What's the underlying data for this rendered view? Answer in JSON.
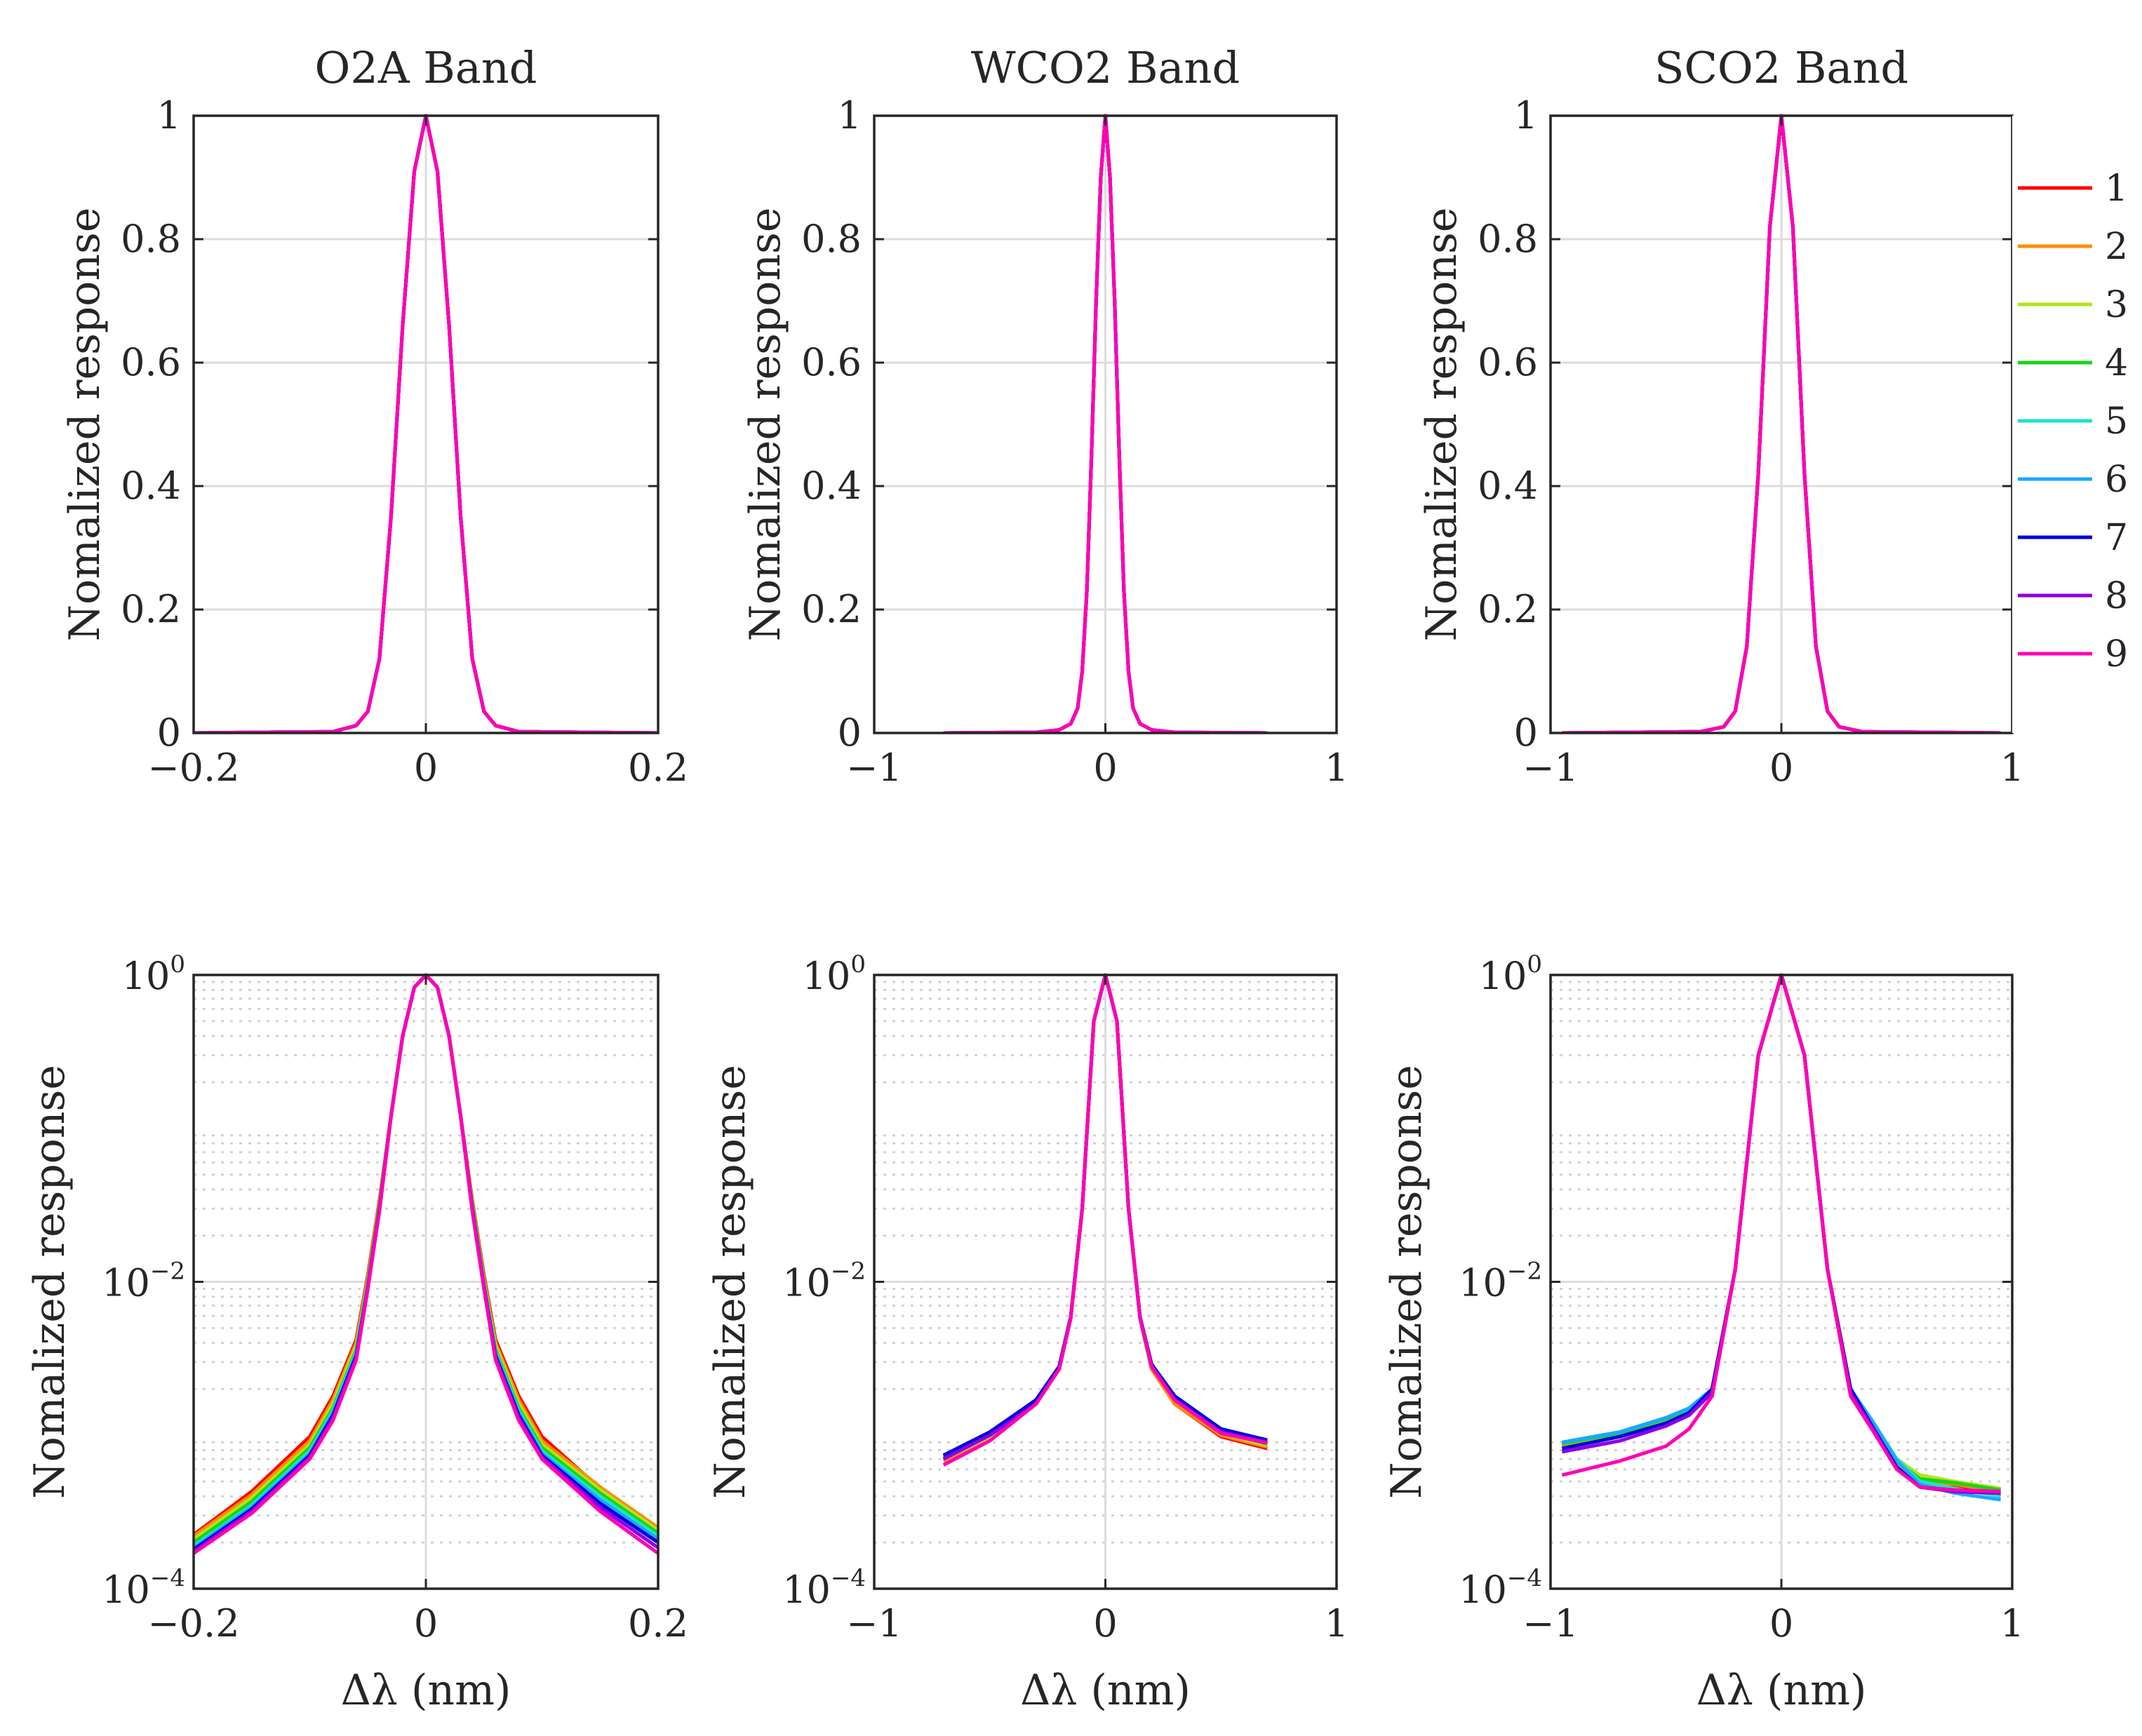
{
  "figure": {
    "ylabel": "Nomalized response",
    "xlabel": "Δλ (nm)",
    "log_tick_base": "10",
    "legend": {
      "placement": "right of top-right panel",
      "entries": [
        "1",
        "2",
        "3",
        "4",
        "5",
        "6",
        "7",
        "8",
        "9"
      ],
      "colors": [
        "#ff0000",
        "#ff8c00",
        "#b2e51a",
        "#1ad31a",
        "#1ae5c8",
        "#1aa8ff",
        "#0000e0",
        "#8c00e5",
        "#ff00b4"
      ]
    }
  },
  "chart_data": [
    {
      "type": "line",
      "panel": "o2a-linear",
      "title": "O2A Band",
      "yscale": "linear",
      "xlim": [
        -0.2,
        0.2
      ],
      "ylim": [
        0,
        1
      ],
      "xticks": [
        -0.2,
        0,
        0.2
      ],
      "xtick_labels": [
        "−0.2",
        "0",
        "0.2"
      ],
      "yticks": [
        0,
        0.2,
        0.4,
        0.6,
        0.8,
        1
      ],
      "ytick_labels": [
        "0",
        "0.2",
        "0.4",
        "0.6",
        "0.8",
        "1"
      ],
      "xlabel": "",
      "ylabel": "Nomalized response",
      "grid": true,
      "series_names": [
        "1",
        "2",
        "3",
        "4",
        "5",
        "6",
        "7",
        "8",
        "9"
      ],
      "x": [
        -0.2,
        -0.08,
        -0.06,
        -0.05,
        -0.04,
        -0.03,
        -0.02,
        -0.01,
        0,
        0.01,
        0.02,
        0.03,
        0.04,
        0.05,
        0.06,
        0.08,
        0.2
      ],
      "y": [
        0,
        0.002,
        0.012,
        0.035,
        0.12,
        0.35,
        0.66,
        0.91,
        1,
        0.91,
        0.66,
        0.35,
        0.12,
        0.035,
        0.012,
        0.002,
        0
      ]
    },
    {
      "type": "line",
      "panel": "wco2-linear",
      "title": "WCO2 Band",
      "yscale": "linear",
      "xlim": [
        -1,
        1
      ],
      "ylim": [
        0,
        1
      ],
      "xticks": [
        -1,
        0,
        1
      ],
      "xtick_labels": [
        "−1",
        "0",
        "1"
      ],
      "yticks": [
        0,
        0.2,
        0.4,
        0.6,
        0.8,
        1
      ],
      "ytick_labels": [
        "0",
        "0.2",
        "0.4",
        "0.6",
        "0.8",
        "1"
      ],
      "xlabel": "",
      "ylabel": "Nomalized response",
      "grid": true,
      "series_names": [
        "1",
        "2",
        "3",
        "4",
        "5",
        "6",
        "7",
        "8",
        "9"
      ],
      "x": [
        -0.7,
        -0.3,
        -0.2,
        -0.15,
        -0.12,
        -0.1,
        -0.08,
        -0.06,
        -0.04,
        -0.02,
        0,
        0.02,
        0.04,
        0.06,
        0.08,
        0.1,
        0.12,
        0.15,
        0.2,
        0.3,
        0.7
      ],
      "y": [
        0,
        0.001,
        0.005,
        0.015,
        0.04,
        0.1,
        0.23,
        0.45,
        0.7,
        0.9,
        1,
        0.9,
        0.7,
        0.45,
        0.23,
        0.1,
        0.04,
        0.015,
        0.005,
        0.001,
        0
      ]
    },
    {
      "type": "line",
      "panel": "sco2-linear",
      "title": "SCO2 Band",
      "yscale": "linear",
      "xlim": [
        -1,
        1
      ],
      "ylim": [
        0,
        1
      ],
      "xticks": [
        -1,
        0,
        1
      ],
      "xtick_labels": [
        "−1",
        "0",
        "1"
      ],
      "yticks": [
        0,
        0.2,
        0.4,
        0.6,
        0.8,
        1
      ],
      "ytick_labels": [
        "0",
        "0.2",
        "0.4",
        "0.6",
        "0.8",
        "1"
      ],
      "xlabel": "",
      "ylabel": "Nomalized response",
      "grid": true,
      "series_names": [
        "1",
        "2",
        "3",
        "4",
        "5",
        "6",
        "7",
        "8",
        "9"
      ],
      "x": [
        -0.95,
        -0.35,
        -0.25,
        -0.2,
        -0.15,
        -0.1,
        -0.05,
        0,
        0.05,
        0.1,
        0.15,
        0.2,
        0.25,
        0.35,
        0.95
      ],
      "y": [
        0,
        0.002,
        0.01,
        0.035,
        0.14,
        0.42,
        0.82,
        1,
        0.82,
        0.42,
        0.14,
        0.035,
        0.01,
        0.002,
        0
      ]
    },
    {
      "type": "line",
      "panel": "o2a-log",
      "title": "",
      "yscale": "log",
      "xlim": [
        -0.2,
        0.2
      ],
      "ylim": [
        0.0001,
        1
      ],
      "xticks": [
        -0.2,
        0,
        0.2
      ],
      "xtick_labels": [
        "−0.2",
        "0",
        "0.2"
      ],
      "yticks": [
        0.0001,
        0.01,
        1
      ],
      "ytick_exponents": [
        "−4",
        "−2",
        "0"
      ],
      "xlabel": "Δλ (nm)",
      "ylabel": "Nomalized response",
      "grid": true,
      "minor_grid": true,
      "x": [
        -0.2,
        -0.15,
        -0.1,
        -0.08,
        -0.06,
        -0.05,
        -0.04,
        -0.03,
        -0.02,
        -0.01,
        0,
        0.01,
        0.02,
        0.03,
        0.04,
        0.05,
        0.06,
        0.08,
        0.1,
        0.15,
        0.2
      ],
      "series": [
        {
          "name": "1",
          "values": [
            0.000225,
            0.00043,
            0.00098,
            0.0018,
            0.0042,
            0.011,
            0.034,
            0.12,
            0.4,
            0.83,
            1,
            0.83,
            0.4,
            0.12,
            0.034,
            0.011,
            0.0042,
            0.0018,
            0.00098,
            0.00045,
            0.000245
          ]
        },
        {
          "name": "2",
          "values": [
            0.00022,
            0.00041,
            0.00092,
            0.0017,
            0.004,
            0.0105,
            0.033,
            0.12,
            0.4,
            0.83,
            1,
            0.83,
            0.4,
            0.12,
            0.033,
            0.0105,
            0.004,
            0.0017,
            0.00092,
            0.00046,
            0.00025
          ]
        },
        {
          "name": "3",
          "values": [
            0.00021,
            0.00039,
            0.00087,
            0.0016,
            0.0038,
            0.01,
            0.032,
            0.12,
            0.4,
            0.83,
            1,
            0.83,
            0.4,
            0.12,
            0.032,
            0.01,
            0.0038,
            0.0016,
            0.00087,
            0.00044,
            0.00024
          ]
        },
        {
          "name": "4",
          "values": [
            0.0002,
            0.00037,
            0.00083,
            0.0015,
            0.0036,
            0.0098,
            0.031,
            0.12,
            0.4,
            0.83,
            1,
            0.83,
            0.4,
            0.12,
            0.031,
            0.0098,
            0.0036,
            0.0015,
            0.00083,
            0.00042,
            0.00023
          ]
        },
        {
          "name": "5",
          "values": [
            0.00019,
            0.00035,
            0.00079,
            0.00145,
            0.0035,
            0.0096,
            0.03,
            0.12,
            0.4,
            0.83,
            1,
            0.83,
            0.4,
            0.12,
            0.03,
            0.0096,
            0.0035,
            0.00145,
            0.00079,
            0.0004,
            0.00022
          ]
        },
        {
          "name": "6",
          "values": [
            0.000185,
            0.00034,
            0.00076,
            0.0014,
            0.0034,
            0.0094,
            0.03,
            0.12,
            0.4,
            0.83,
            1,
            0.83,
            0.4,
            0.12,
            0.03,
            0.0094,
            0.0034,
            0.0014,
            0.00076,
            0.00038,
            0.00021
          ]
        },
        {
          "name": "7",
          "values": [
            0.00018,
            0.00033,
            0.00074,
            0.00135,
            0.0033,
            0.0093,
            0.03,
            0.12,
            0.4,
            0.83,
            1,
            0.83,
            0.4,
            0.12,
            0.03,
            0.0093,
            0.0033,
            0.00135,
            0.00074,
            0.00036,
            0.0002
          ]
        },
        {
          "name": "8",
          "values": [
            0.000175,
            0.00032,
            0.00072,
            0.0013,
            0.0032,
            0.0092,
            0.029,
            0.12,
            0.4,
            0.83,
            1,
            0.83,
            0.4,
            0.12,
            0.029,
            0.0092,
            0.0032,
            0.0013,
            0.00072,
            0.00034,
            0.000185
          ]
        },
        {
          "name": "9",
          "values": [
            0.00017,
            0.00031,
            0.0007,
            0.00125,
            0.0031,
            0.009,
            0.029,
            0.12,
            0.4,
            0.83,
            1,
            0.83,
            0.4,
            0.12,
            0.029,
            0.009,
            0.0031,
            0.00125,
            0.0007,
            0.00032,
            0.00017
          ]
        }
      ]
    },
    {
      "type": "line",
      "panel": "wco2-log",
      "title": "",
      "yscale": "log",
      "xlim": [
        -1,
        1
      ],
      "ylim": [
        0.0001,
        1
      ],
      "xticks": [
        -1,
        0,
        1
      ],
      "xtick_labels": [
        "−1",
        "0",
        "1"
      ],
      "yticks": [
        0.0001,
        0.01,
        1
      ],
      "ytick_exponents": [
        "−4",
        "−2",
        "0"
      ],
      "xlabel": "Δλ (nm)",
      "ylabel": "Nomalized response",
      "grid": true,
      "minor_grid": true,
      "x": [
        -0.7,
        -0.5,
        -0.3,
        -0.2,
        -0.15,
        -0.1,
        -0.05,
        0,
        0.05,
        0.1,
        0.15,
        0.2,
        0.3,
        0.5,
        0.7
      ],
      "series": [
        {
          "name": "1",
          "values": [
            0.00068,
            0.00095,
            0.0016,
            0.0027,
            0.0058,
            0.03,
            0.5,
            1,
            0.5,
            0.03,
            0.0058,
            0.0027,
            0.0016,
            0.00098,
            0.00082
          ]
        },
        {
          "name": "2",
          "values": [
            0.00068,
            0.00096,
            0.0016,
            0.0027,
            0.0058,
            0.03,
            0.5,
            1,
            0.5,
            0.03,
            0.0058,
            0.0027,
            0.0016,
            0.001,
            0.00084
          ]
        },
        {
          "name": "3",
          "values": [
            0.0007,
            0.00098,
            0.0017,
            0.0027,
            0.0058,
            0.03,
            0.5,
            1,
            0.5,
            0.03,
            0.0058,
            0.0028,
            0.0017,
            0.00103,
            0.00086
          ]
        },
        {
          "name": "4",
          "values": [
            0.0007,
            0.001,
            0.0017,
            0.0028,
            0.0058,
            0.03,
            0.5,
            1,
            0.5,
            0.03,
            0.0058,
            0.0028,
            0.0017,
            0.00105,
            0.00088
          ]
        },
        {
          "name": "5",
          "values": [
            0.00072,
            0.00102,
            0.0017,
            0.0028,
            0.0059,
            0.03,
            0.5,
            1,
            0.5,
            0.03,
            0.0059,
            0.0029,
            0.0018,
            0.00108,
            0.0009
          ]
        },
        {
          "name": "6",
          "values": [
            0.00072,
            0.00103,
            0.0017,
            0.0028,
            0.0059,
            0.03,
            0.5,
            1,
            0.5,
            0.03,
            0.0059,
            0.0029,
            0.0018,
            0.0011,
            0.00092
          ]
        },
        {
          "name": "7",
          "values": [
            0.00074,
            0.00105,
            0.0017,
            0.0028,
            0.0059,
            0.03,
            0.5,
            1,
            0.5,
            0.03,
            0.0059,
            0.0029,
            0.0018,
            0.0011,
            0.00093
          ]
        },
        {
          "name": "8",
          "values": [
            0.0007,
            0.001,
            0.0016,
            0.0027,
            0.0058,
            0.03,
            0.5,
            1,
            0.5,
            0.03,
            0.0058,
            0.0028,
            0.0017,
            0.00105,
            0.0009
          ]
        },
        {
          "name": "9",
          "values": [
            0.00064,
            0.00092,
            0.0016,
            0.0027,
            0.0058,
            0.03,
            0.5,
            1,
            0.5,
            0.03,
            0.0058,
            0.0028,
            0.0017,
            0.00103,
            0.00089
          ]
        }
      ]
    },
    {
      "type": "line",
      "panel": "sco2-log",
      "title": "",
      "yscale": "log",
      "xlim": [
        -1,
        1
      ],
      "ylim": [
        0.0001,
        1
      ],
      "xticks": [
        -1,
        0,
        1
      ],
      "xtick_labels": [
        "−1",
        "0",
        "1"
      ],
      "yticks": [
        0.0001,
        0.01,
        1
      ],
      "ytick_exponents": [
        "−4",
        "−2",
        "0"
      ],
      "xlabel": "Δλ (nm)",
      "ylabel": "Nomalized response",
      "grid": true,
      "minor_grid": true,
      "x": [
        -0.95,
        -0.7,
        -0.5,
        -0.4,
        -0.3,
        -0.2,
        -0.1,
        0,
        0.1,
        0.2,
        0.3,
        0.4,
        0.5,
        0.6,
        0.75,
        0.95
      ],
      "series": [
        {
          "name": "1",
          "values": [
            0.00085,
            0.001,
            0.0012,
            0.0014,
            0.002,
            0.012,
            0.3,
            1,
            0.3,
            0.012,
            0.002,
            0.0011,
            0.00065,
            0.00048,
            0.00046,
            0.00044
          ]
        },
        {
          "name": "2",
          "values": [
            0.00086,
            0.001,
            0.00122,
            0.00142,
            0.002,
            0.012,
            0.3,
            1,
            0.3,
            0.012,
            0.002,
            0.0011,
            0.00066,
            0.0005,
            0.00048,
            0.00043
          ]
        },
        {
          "name": "3",
          "values": [
            0.00088,
            0.00102,
            0.00125,
            0.00145,
            0.002,
            0.012,
            0.3,
            1,
            0.3,
            0.012,
            0.002,
            0.00115,
            0.0007,
            0.00055,
            0.0005,
            0.00045
          ]
        },
        {
          "name": "4",
          "values": [
            0.00088,
            0.00103,
            0.00128,
            0.00147,
            0.002,
            0.012,
            0.3,
            1,
            0.3,
            0.012,
            0.002,
            0.00115,
            0.00068,
            0.00052,
            0.00049,
            0.00044
          ]
        },
        {
          "name": "5",
          "values": [
            0.0009,
            0.00105,
            0.0013,
            0.0015,
            0.002,
            0.012,
            0.3,
            1,
            0.3,
            0.012,
            0.002,
            0.0012,
            0.0007,
            0.0005,
            0.00045,
            0.0004
          ]
        },
        {
          "name": "6",
          "values": [
            0.0009,
            0.00105,
            0.0013,
            0.0015,
            0.002,
            0.012,
            0.3,
            1,
            0.3,
            0.012,
            0.002,
            0.0012,
            0.00068,
            0.00048,
            0.00042,
            0.00038
          ]
        },
        {
          "name": "7",
          "values": [
            0.00082,
            0.00098,
            0.0012,
            0.0014,
            0.002,
            0.012,
            0.3,
            1,
            0.3,
            0.012,
            0.002,
            0.0011,
            0.00062,
            0.00046,
            0.00043,
            0.00042
          ]
        },
        {
          "name": "8",
          "values": [
            0.00078,
            0.00092,
            0.00115,
            0.00135,
            0.0019,
            0.012,
            0.3,
            1,
            0.3,
            0.012,
            0.0019,
            0.00108,
            0.0006,
            0.00046,
            0.00043,
            0.00042
          ]
        },
        {
          "name": "9",
          "values": [
            0.00055,
            0.00068,
            0.00085,
            0.0011,
            0.0018,
            0.012,
            0.3,
            1,
            0.3,
            0.012,
            0.0018,
            0.00105,
            0.0006,
            0.00046,
            0.00044,
            0.00043
          ]
        }
      ]
    }
  ]
}
